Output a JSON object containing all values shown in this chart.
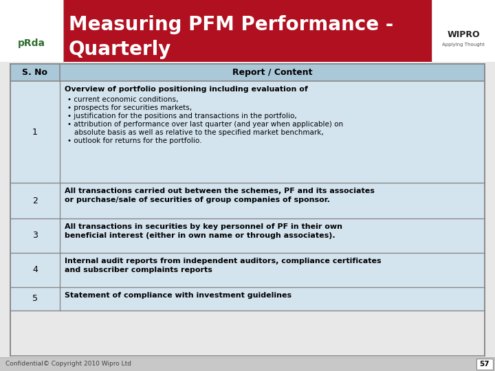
{
  "title_line1": "Measuring PFM Performance -",
  "title_line2": "Quarterly",
  "header_bg": "#b01020",
  "header_text_color": "#ffffff",
  "table_header": [
    "S. No",
    "Report / Content"
  ],
  "table_header_bg": "#aac8d8",
  "table_row_bg": "#d4e4ef",
  "table_border_color": "#888888",
  "footer_text": "Confidential© Copyright 2010 Wipro Ltd",
  "footer_page": "57",
  "rows": [
    {
      "no": "1",
      "content_bold": "Overview of portfolio positioning including evaluation of",
      "content_bullets": [
        "current economic conditions,",
        "prospects for securities markets,",
        "justification for the positions and transactions in the portfolio,",
        "attribution of performance over last quarter (and year when applicable) on\n   absolute basis as well as relative to the specified market benchmark,",
        "outlook for returns for the portfolio."
      ]
    },
    {
      "no": "2",
      "content_bold": "All transactions carried out between the schemes, PF and its associates\nor purchase/sale of securities of group companies of sponsor.",
      "content_bullets": []
    },
    {
      "no": "3",
      "content_bold": "All transactions in securities by key personnel of PF in their own\nbeneficial interest (either in own name or through associates).",
      "content_bullets": []
    },
    {
      "no": "4",
      "content_bold": "Internal audit reports from independent auditors, compliance certificates\nand subscriber complaints reports",
      "content_bullets": []
    },
    {
      "no": "5",
      "content_bold": "Statement of compliance with investment guidelines",
      "content_bullets": []
    }
  ]
}
